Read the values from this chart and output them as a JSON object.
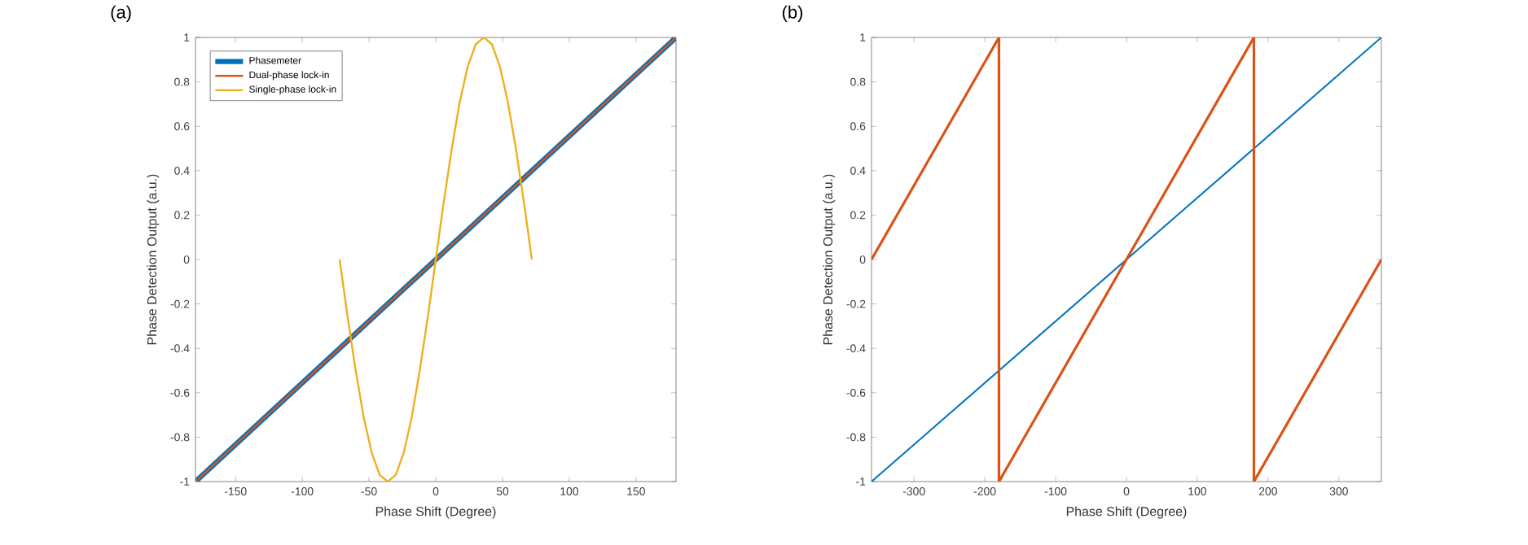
{
  "chart_data": [
    {
      "type": "line",
      "title": "(a)",
      "xlabel": "Phase Shift (Degree)",
      "ylabel": "Phase Detection Output (a.u.)",
      "xlim": [
        -180,
        180
      ],
      "ylim": [
        -1,
        1
      ],
      "xticks": [
        -150,
        -100,
        -50,
        0,
        50,
        100,
        150
      ],
      "yticks": [
        -1,
        -0.8,
        -0.6,
        -0.4,
        -0.2,
        0,
        0.2,
        0.4,
        0.6,
        0.8,
        1
      ],
      "legend": "top left",
      "marker": "none",
      "grid": false,
      "series": [
        {
          "name": "Phasemeter",
          "color": "#0072bd",
          "x": [
            -180,
            180
          ],
          "values": [
            -1,
            1
          ]
        },
        {
          "name": "Dual-phase lock-in",
          "color": "#d95319",
          "x": [
            -180,
            180
          ],
          "values": [
            -1,
            1
          ]
        },
        {
          "name": "Single-phase lock-in",
          "color": "#edb120",
          "x": [
            -72,
            -66,
            -60,
            -54,
            -48,
            -42,
            -36,
            -30,
            -24,
            -18,
            -12,
            -6,
            0,
            6,
            12,
            18,
            24,
            30,
            36,
            42,
            48,
            54,
            60,
            66,
            72
          ],
          "values": [
            0,
            -0.26,
            -0.5,
            -0.71,
            -0.87,
            -0.97,
            -1,
            -0.97,
            -0.87,
            -0.71,
            -0.5,
            -0.26,
            0,
            0.26,
            0.5,
            0.71,
            0.87,
            0.97,
            1,
            0.97,
            0.87,
            0.71,
            0.5,
            0.26,
            0
          ]
        }
      ]
    },
    {
      "type": "line",
      "title": "(b)",
      "xlabel": "Phase Shift (Degree)",
      "ylabel": "Phase Detection Output (a.u.)",
      "xlim": [
        -360,
        360
      ],
      "ylim": [
        -1,
        1
      ],
      "xticks": [
        -300,
        -200,
        -100,
        0,
        100,
        200,
        300
      ],
      "yticks": [
        -1,
        -0.8,
        -0.6,
        -0.4,
        -0.2,
        0,
        0.2,
        0.4,
        0.6,
        0.8,
        1
      ],
      "legend": false,
      "marker": "none",
      "grid": false,
      "series": [
        {
          "color": "#0072bd",
          "x": [
            -360,
            360
          ],
          "values": [
            -1,
            1
          ]
        },
        {
          "color": "#d95319",
          "x": [
            -360,
            -180,
            -180,
            180,
            180,
            360
          ],
          "values": [
            0,
            1,
            -1,
            1,
            -1,
            0
          ]
        }
      ]
    }
  ]
}
